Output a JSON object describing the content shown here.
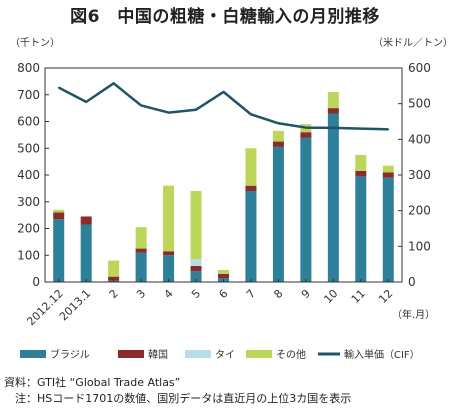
{
  "title": "図6　中国の粗糖・白糖輸入の月別推移",
  "chart_data": {
    "type": "bar",
    "stacked": true,
    "left_unit": "（千トン）",
    "right_unit": "（米ドル／トン）",
    "x_unit": "（年.月）",
    "categories": [
      "2012.12",
      "2013.1",
      "2",
      "3",
      "4",
      "5",
      "6",
      "7",
      "8",
      "9",
      "10",
      "11",
      "12"
    ],
    "ylim": [
      0,
      800
    ],
    "y_ticks": [
      "0",
      "100",
      "200",
      "300",
      "400",
      "500",
      "600",
      "700",
      "800"
    ],
    "y2lim": [
      0,
      600
    ],
    "y2_ticks": [
      "0",
      "100",
      "200",
      "300",
      "400",
      "500",
      "600"
    ],
    "series": [
      {
        "name": "ブラジル",
        "color": "#2e7f98",
        "values": [
          235,
          215,
          5,
          110,
          100,
          40,
          15,
          340,
          505,
          540,
          630,
          395,
          390
        ]
      },
      {
        "name": "韓国",
        "color": "#8b2b2b",
        "values": [
          25,
          30,
          15,
          15,
          15,
          20,
          15,
          20,
          20,
          20,
          20,
          20,
          20
        ]
      },
      {
        "name": "タイ",
        "color": "#b8dce8",
        "values": [
          0,
          0,
          0,
          0,
          0,
          25,
          0,
          0,
          0,
          0,
          0,
          0,
          0
        ]
      },
      {
        "name": "その他",
        "color": "#bcd65a",
        "values": [
          10,
          0,
          60,
          80,
          245,
          255,
          15,
          140,
          40,
          30,
          60,
          60,
          25
        ]
      }
    ],
    "line_series": {
      "name": "輸入単価（CIF）",
      "color": "#1f5566",
      "values": [
        545,
        505,
        557,
        495,
        475,
        483,
        533,
        470,
        445,
        433,
        432,
        430,
        428
      ]
    },
    "grid": false,
    "legend": "bottom"
  },
  "notes": {
    "source": "資料：GTI社 “Global Trade Atlas”",
    "note": "　注：HSコード1701の数値、国別データは直近月の上位3カ国を表示"
  }
}
